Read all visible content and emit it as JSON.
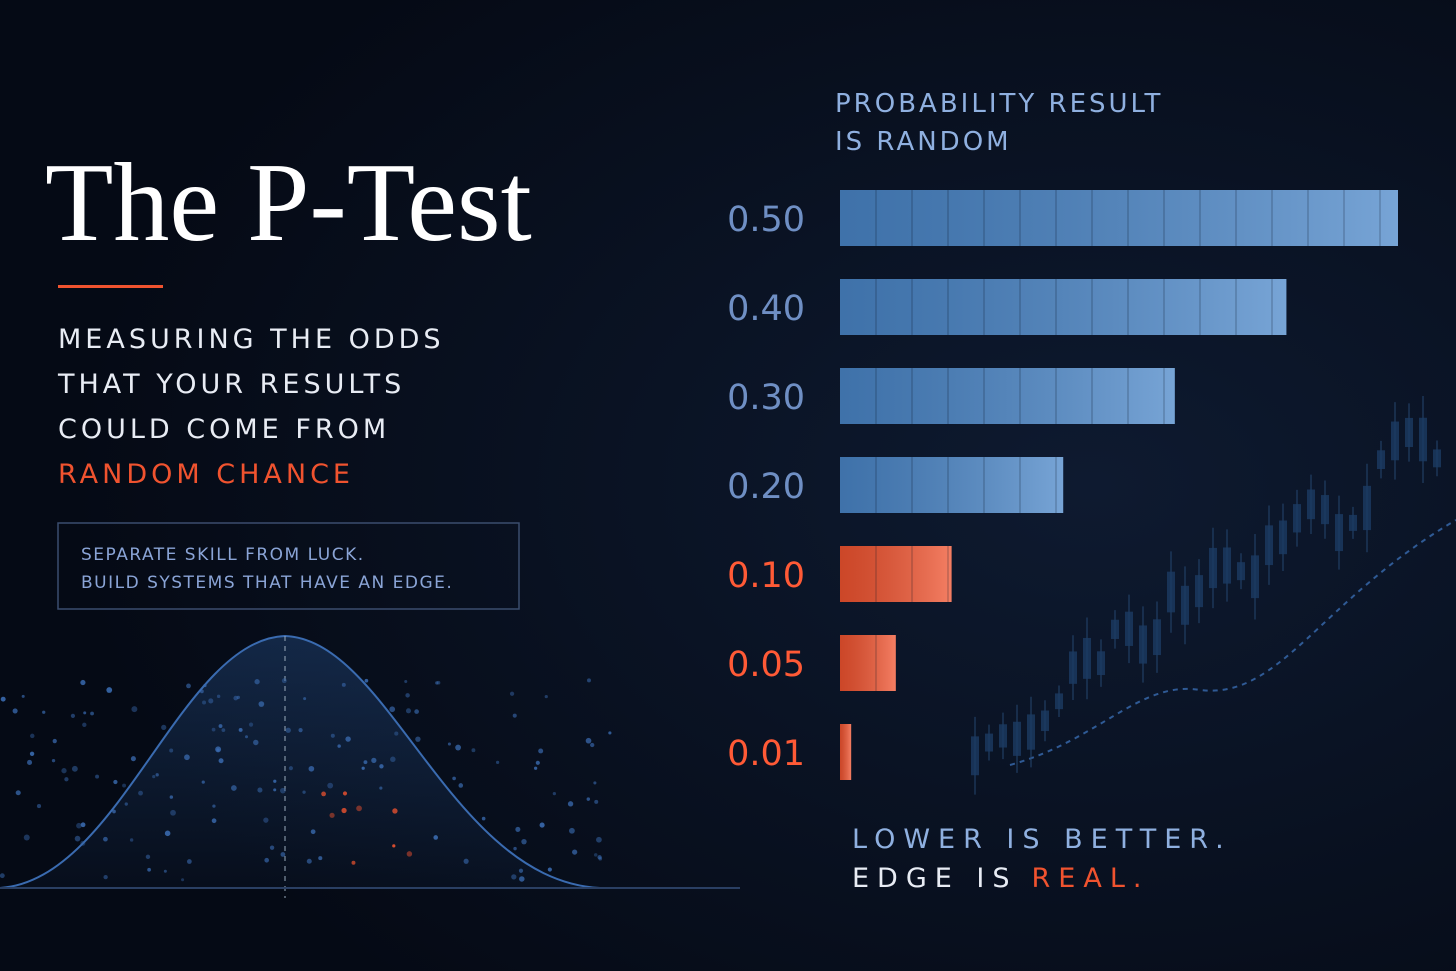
{
  "title": "The P-Test",
  "subtitle_lines": [
    "MEASURING THE ODDS",
    "THAT YOUR RESULTS",
    "COULD COME FROM"
  ],
  "subtitle_highlight": "RANDOM CHANCE",
  "note_lines": [
    "SEPARATE SKILL FROM LUCK.",
    "BUILD SYSTEMS THAT HAVE AN EDGE."
  ],
  "chart_data": {
    "type": "bar",
    "orientation": "horizontal",
    "title_lines": [
      "PROBABILITY RESULT",
      "IS RANDOM"
    ],
    "values": [
      0.5,
      0.4,
      0.3,
      0.2,
      0.1,
      0.05,
      0.01
    ],
    "value_labels": [
      "0.50",
      "0.40",
      "0.30",
      "0.20",
      "0.10",
      "0.05",
      "0.01"
    ],
    "colors": [
      "#4a86c8",
      "#4a86c8",
      "#4a86c8",
      "#4a86c8",
      "#f0532f",
      "#f0532f",
      "#f0532f"
    ],
    "xlim": [
      0,
      0.5
    ]
  },
  "footer": {
    "line1": "LOWER IS BETTER.",
    "line2": "EDGE IS",
    "line2_highlight": "REAL."
  }
}
